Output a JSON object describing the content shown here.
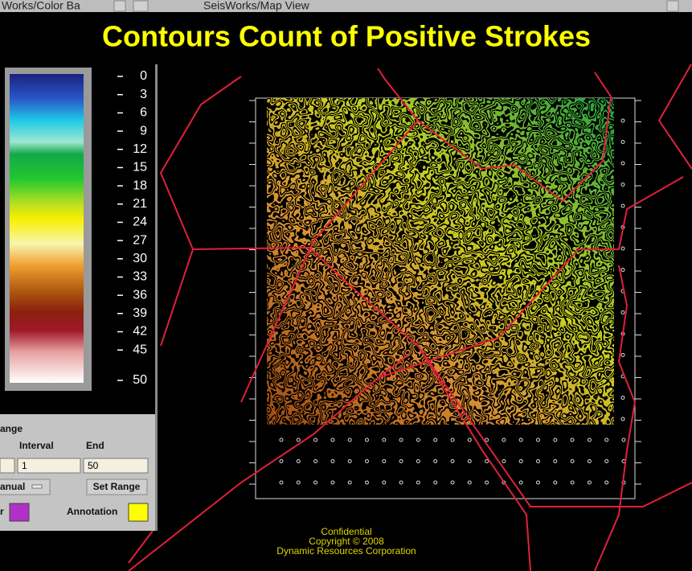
{
  "windows": {
    "color_bar_title": "Works/Color Ba",
    "map_title": "SeisWorks/Map View"
  },
  "title": "Contours Count of Positive Strokes",
  "color_bar": {
    "ticks": [
      0,
      3,
      6,
      9,
      12,
      15,
      18,
      21,
      24,
      27,
      30,
      33,
      36,
      39,
      42,
      45,
      50
    ]
  },
  "range_panel": {
    "heading": "ange",
    "interval_label": "Interval",
    "end_label": "End",
    "interval": 1,
    "end": 50,
    "mode": "anual",
    "set_range": "Set Range",
    "color_label": "r",
    "annotation_label": "Annotation"
  },
  "footer": {
    "line1": "Confidential",
    "line2": "Copyright © 2008",
    "line3": "Dynamic Resources Corporation"
  }
}
